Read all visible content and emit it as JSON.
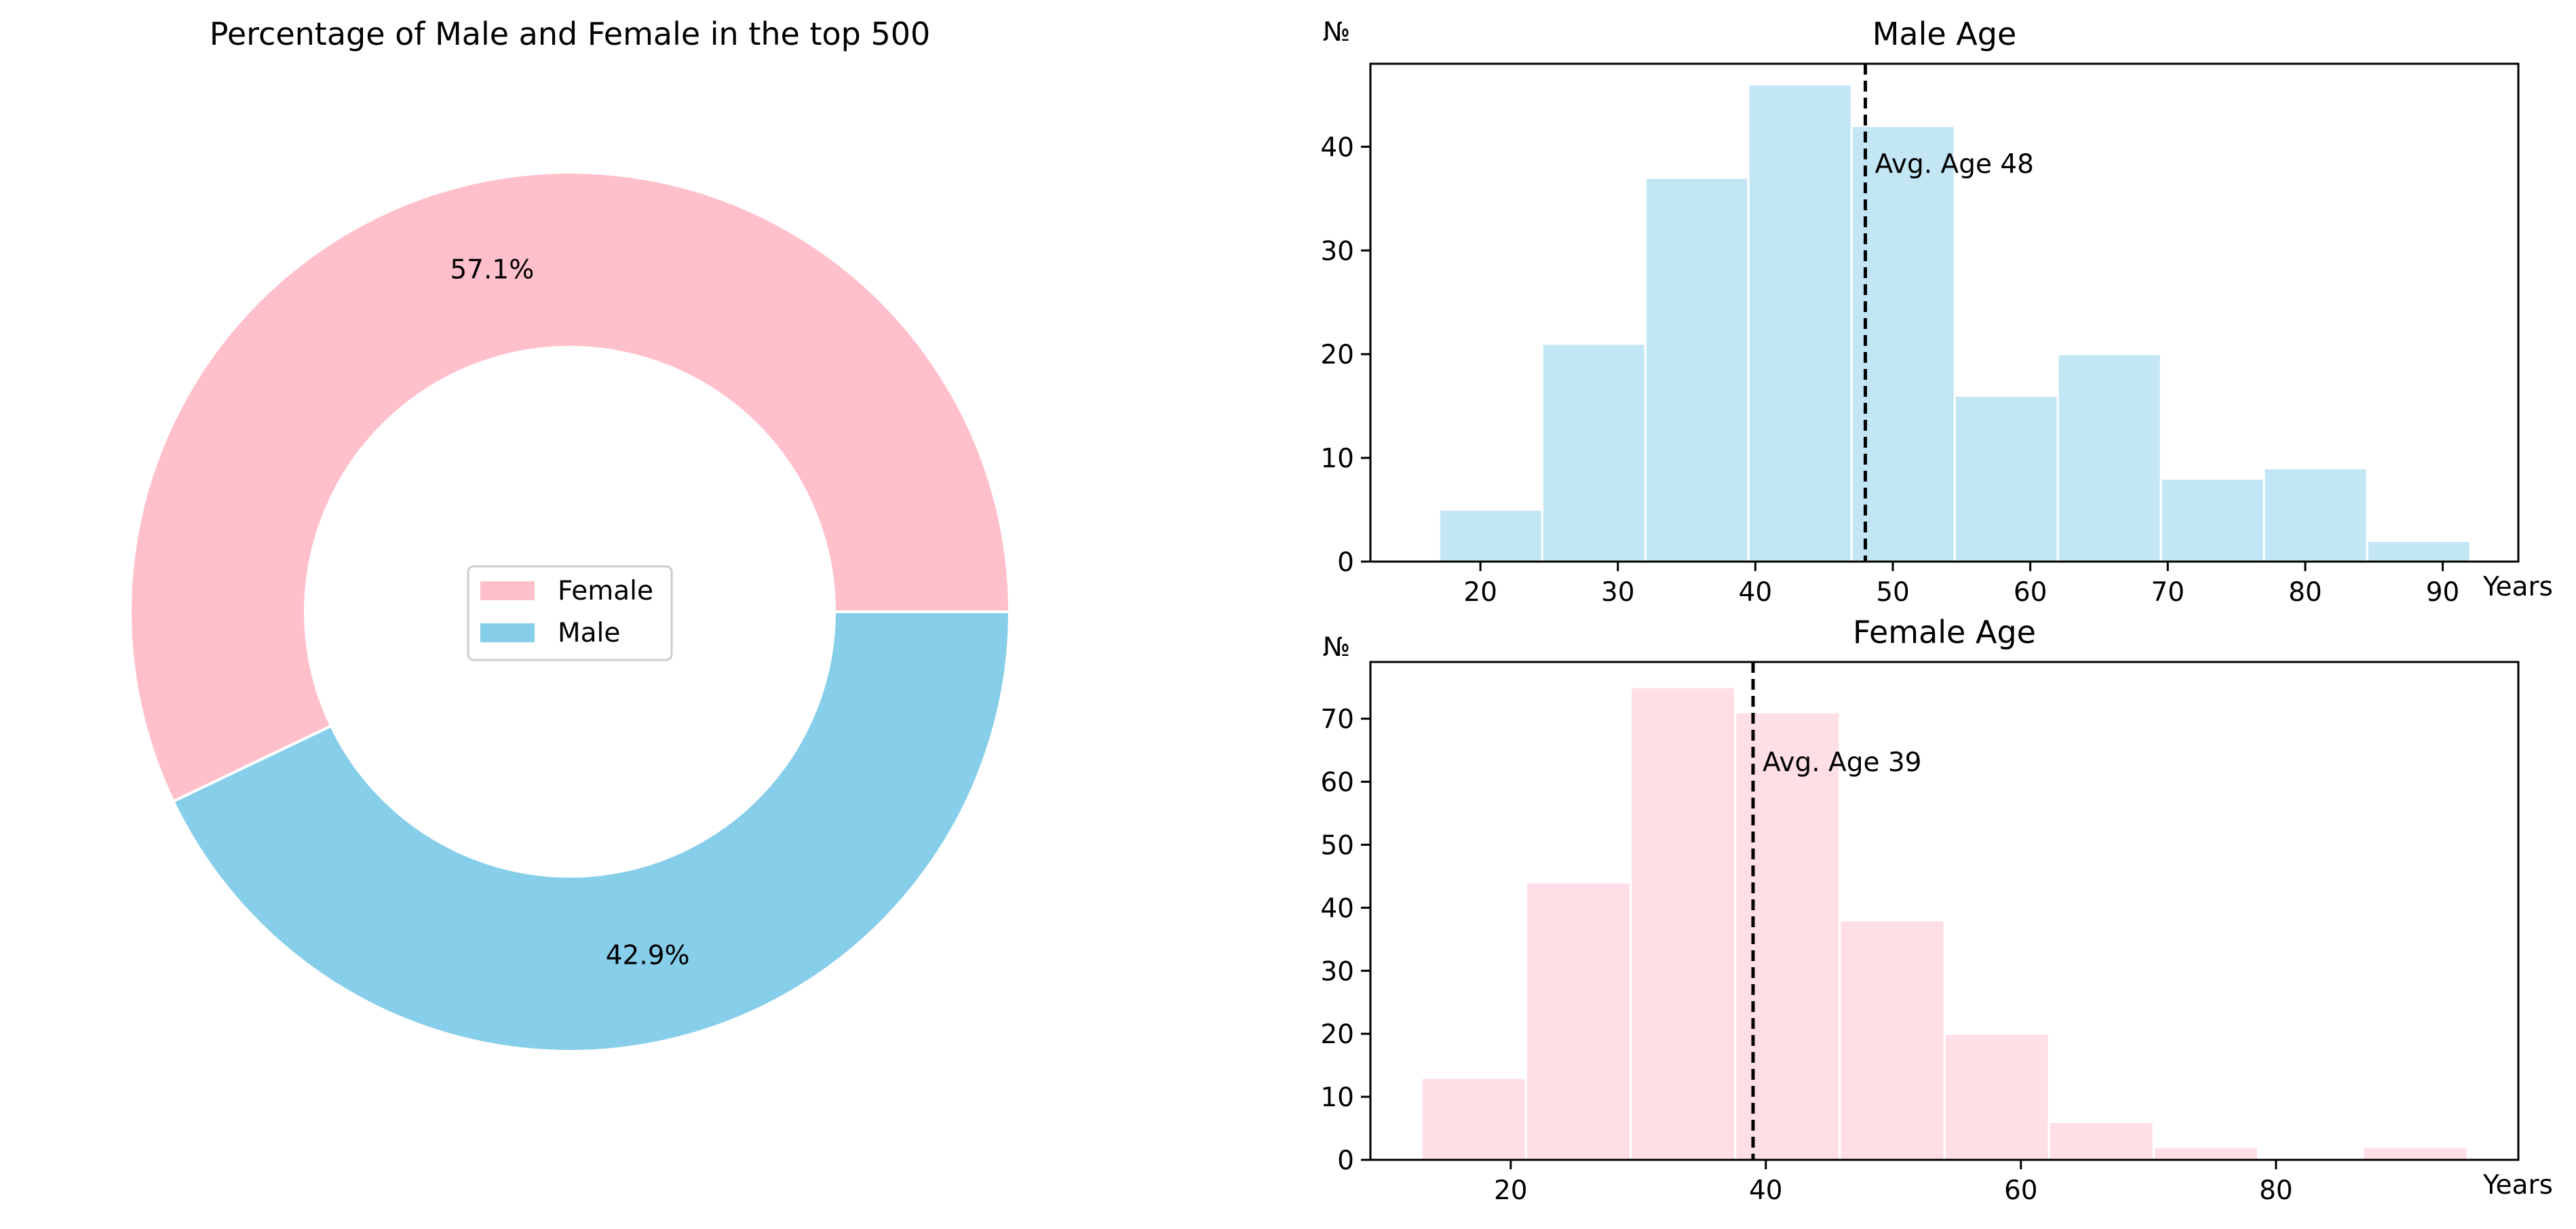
{
  "colors": {
    "female": "#ffc0cb",
    "male": "#87ceeb",
    "axis": "#000000",
    "bar_edge": "#ffffff"
  },
  "chart_data": [
    {
      "type": "pie",
      "style": "donut",
      "title": "Percentage of Male and Female in the top 500",
      "labels": [
        "Female",
        "Male"
      ],
      "values": [
        57.1,
        42.9
      ],
      "value_labels": [
        "57.1%",
        "42.9%"
      ],
      "colors": [
        "#ffc0cb",
        "#87ceeb"
      ],
      "legend": {
        "placement": "center",
        "entries": [
          "Female",
          "Male"
        ]
      }
    },
    {
      "type": "bar",
      "subtype": "histogram",
      "title": "Male Age",
      "xlabel": "Years",
      "ylabel": "№",
      "bin_edges": [
        17,
        24.5,
        32,
        39.5,
        47,
        54.5,
        62,
        69.5,
        77,
        84.5,
        92
      ],
      "values": [
        5,
        21,
        37,
        46,
        42,
        16,
        20,
        8,
        9,
        2
      ],
      "xlim": [
        12,
        95.5
      ],
      "ylim": [
        0,
        48
      ],
      "xticks": [
        20,
        30,
        40,
        50,
        60,
        70,
        80,
        90
      ],
      "yticks": [
        0,
        10,
        20,
        30,
        40
      ],
      "color": "#87ceeb",
      "mean_line": {
        "x": 48,
        "label": "Avg. Age 48"
      }
    },
    {
      "type": "bar",
      "subtype": "histogram",
      "title": "Female Age",
      "xlabel": "Years",
      "ylabel": "№",
      "bin_edges": [
        13,
        21.2,
        29.4,
        37.6,
        45.8,
        54,
        62.2,
        70.4,
        78.6,
        86.8,
        95
      ],
      "values": [
        13,
        44,
        75,
        71,
        38,
        20,
        6,
        2,
        0,
        2
      ],
      "xlim": [
        9,
        99
      ],
      "ylim": [
        0,
        79
      ],
      "xticks": [
        20,
        40,
        60,
        80
      ],
      "yticks": [
        0,
        10,
        20,
        30,
        40,
        50,
        60,
        70
      ],
      "color": "#ffc0cb",
      "mean_line": {
        "x": 39,
        "label": "Avg. Age 39"
      }
    }
  ]
}
